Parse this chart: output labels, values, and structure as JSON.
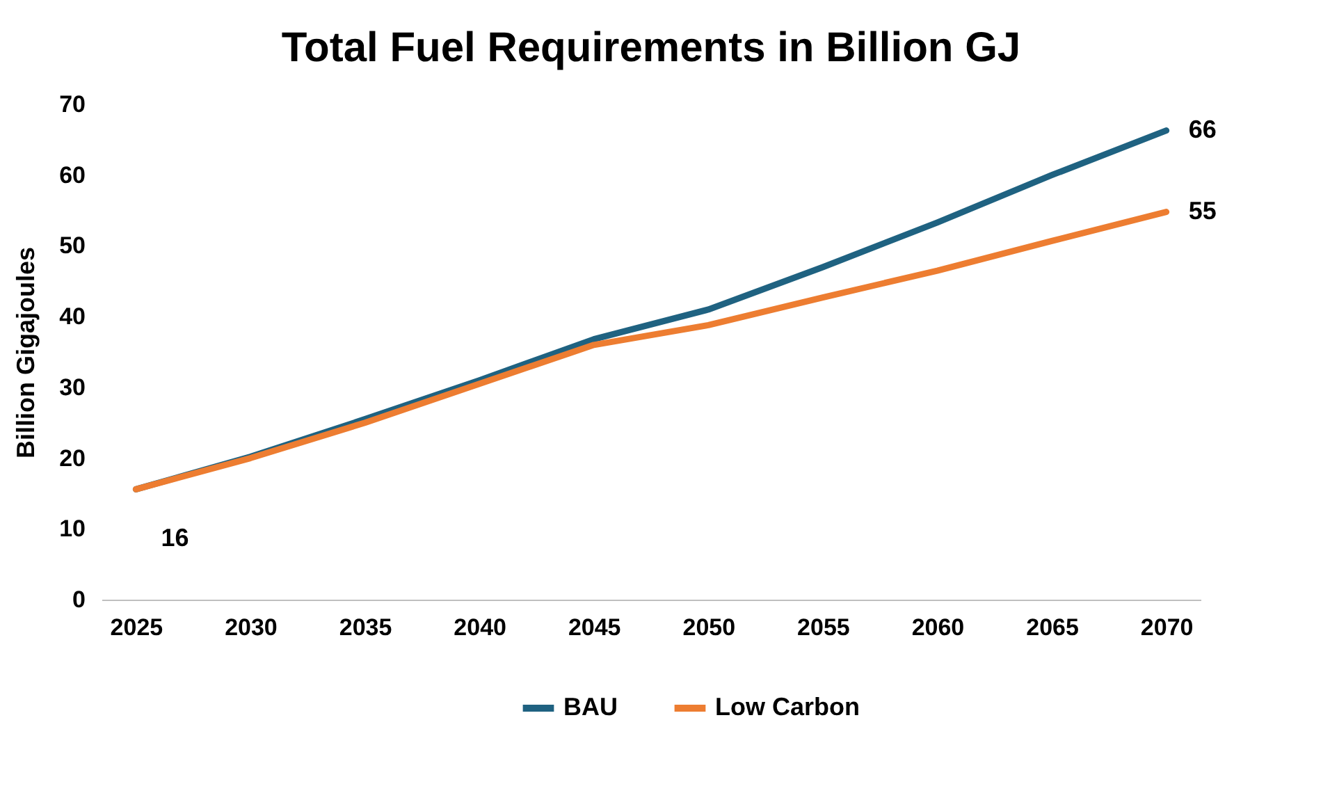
{
  "chart_data": {
    "type": "line",
    "title": "Total Fuel Requirements in Billion GJ",
    "ylabel": "Billion Gigajoules",
    "categories": [
      "2025",
      "2030",
      "2035",
      "2040",
      "2045",
      "2050",
      "2055",
      "2060",
      "2065",
      "2070"
    ],
    "series": [
      {
        "name": "BAU",
        "color": "#1f6281",
        "values": [
          15.6,
          20.2,
          25.5,
          31,
          36.8,
          41,
          47,
          53.3,
          60,
          66.3
        ],
        "value_labels": [
          "16",
          null,
          null,
          null,
          null,
          null,
          null,
          null,
          null,
          "66"
        ]
      },
      {
        "name": "Low Carbon",
        "color": "#ed7d31",
        "values": [
          15.6,
          20,
          25,
          30.5,
          36,
          38.8,
          42.7,
          46.5,
          50.7,
          54.8
        ],
        "value_labels": [
          null,
          null,
          null,
          null,
          null,
          null,
          null,
          null,
          null,
          "55"
        ]
      }
    ],
    "ylim": [
      0,
      70
    ],
    "yticks": [
      0,
      10,
      20,
      30,
      40,
      50,
      60,
      70
    ],
    "grid": false,
    "legend": "bottom",
    "marker": "none",
    "line_style": "solid"
  }
}
